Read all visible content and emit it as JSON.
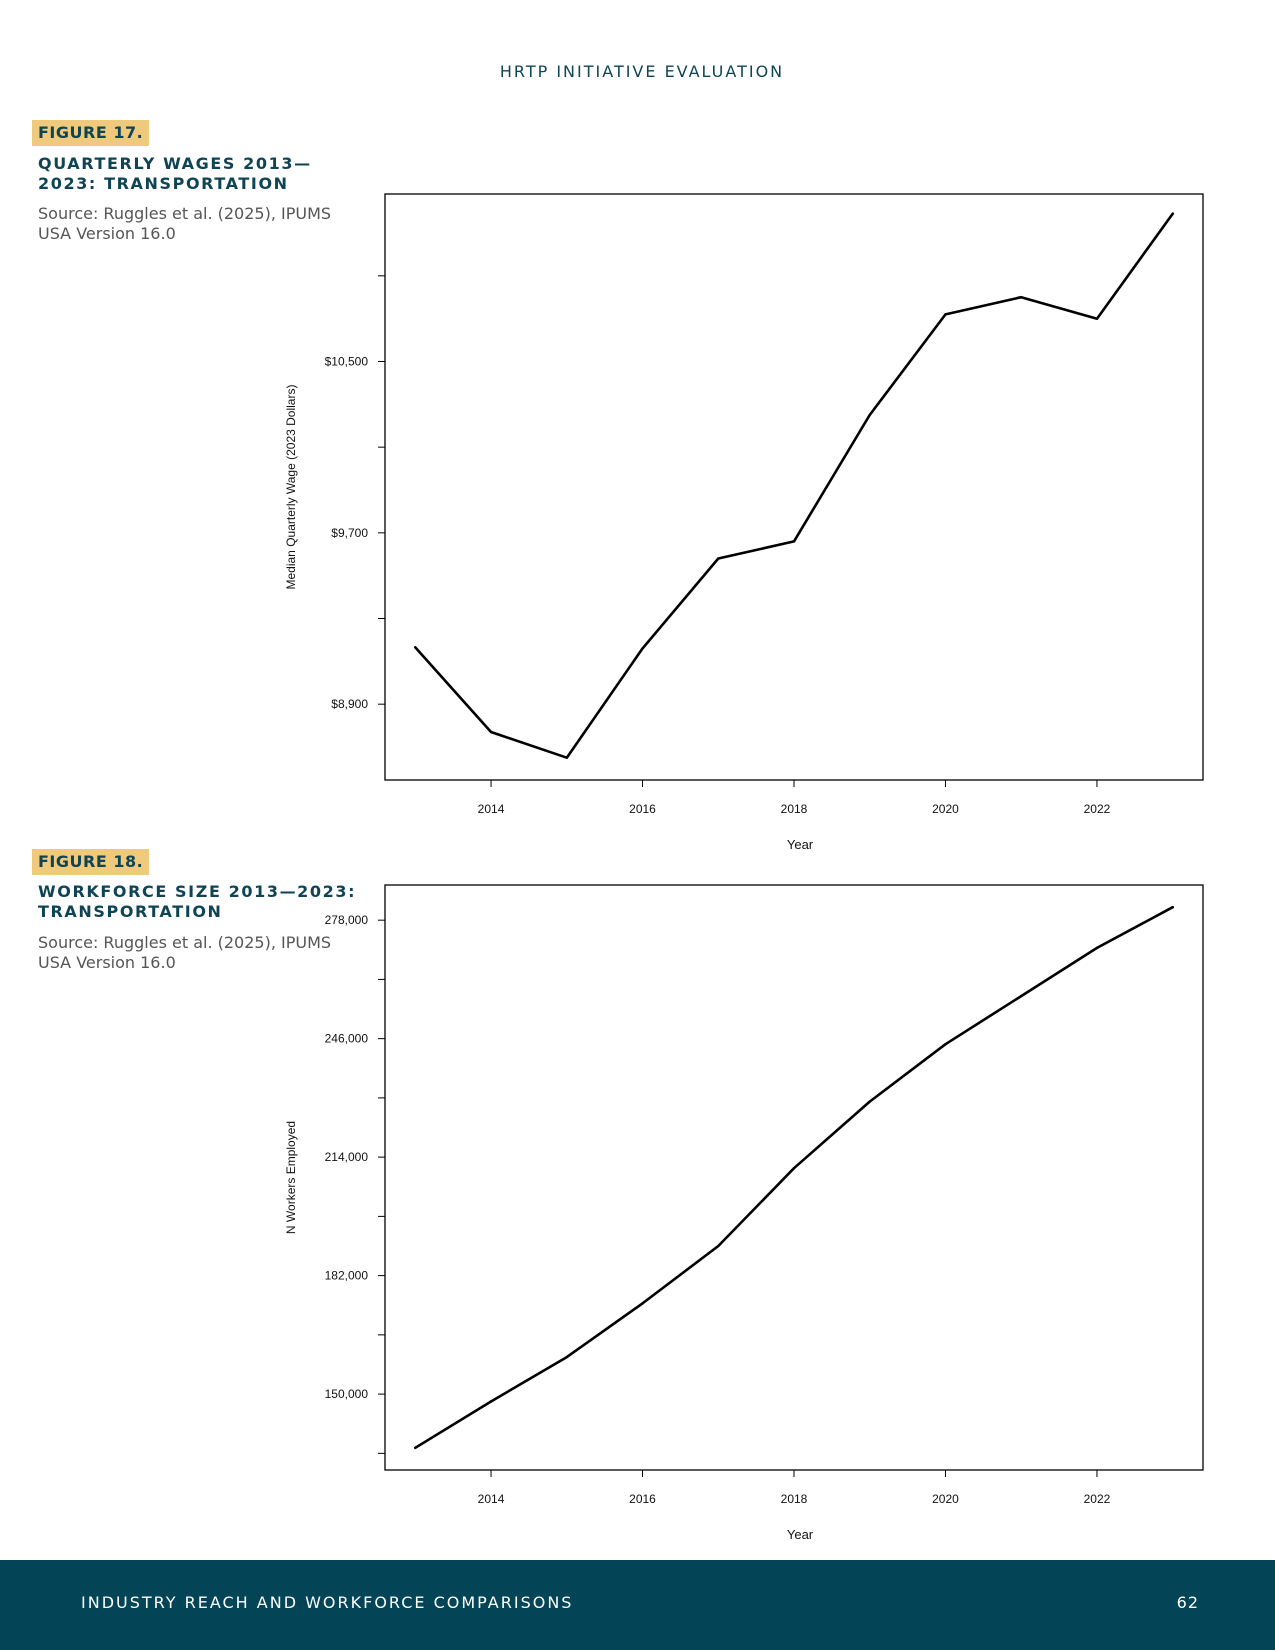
{
  "header": {
    "running_title": "HRTP INITIATIVE EVALUATION"
  },
  "figures": [
    {
      "label": "FIGURE 17.",
      "title": "QUARTERLY WAGES 2013—2023: TRANSPORTATION",
      "source": "Source: Ruggles et al. (2025), IPUMS USA Version 16.0"
    },
    {
      "label": "FIGURE 18.",
      "title": "WORKFORCE SIZE 2013—2023: TRANSPORTATION",
      "source": "Source: Ruggles et al. (2025), IPUMS USA Version 16.0"
    }
  ],
  "chart_data": [
    {
      "type": "line",
      "title": "",
      "xlabel": "Year",
      "ylabel": "Median Quarterly Wage (2023 Dollars)",
      "x": [
        2013,
        2014,
        2015,
        2016,
        2017,
        2018,
        2019,
        2020,
        2021,
        2022,
        2023
      ],
      "series": [
        {
          "values": [
            9165,
            8770,
            8650,
            9160,
            9580,
            9660,
            10250,
            10720,
            10800,
            10700,
            11190
          ]
        }
      ],
      "xlim": [
        2012.6,
        2023.4
      ],
      "ylim": [
        8546,
        11282
      ],
      "xticks": [
        2014,
        2016,
        2018,
        2020,
        2022
      ],
      "xtick_labels": [
        "2014",
        "2016",
        "2018",
        "2020",
        "2022"
      ],
      "yticks": [
        8900,
        9300,
        9700,
        10100,
        10500,
        10900
      ],
      "ytick_labels": [
        "$8,900",
        "",
        "$9,700",
        "",
        "$10,500",
        ""
      ],
      "color": "#000000",
      "grid": false,
      "legend": "none"
    },
    {
      "type": "line",
      "title": "",
      "xlabel": "Year",
      "ylabel": "N Workers Employed",
      "x": [
        2013,
        2014,
        2015,
        2016,
        2017,
        2018,
        2019,
        2020,
        2021,
        2022,
        2023
      ],
      "series": [
        {
          "values": [
            135500,
            148000,
            160000,
            174500,
            190000,
            211000,
            229000,
            244500,
            257500,
            270500,
            281500
          ]
        }
      ],
      "xlim": [
        2012.6,
        2023.4
      ],
      "ylim": [
        129500,
        287500
      ],
      "xticks": [
        2014,
        2016,
        2018,
        2020,
        2022
      ],
      "xtick_labels": [
        "2014",
        "2016",
        "2018",
        "2020",
        "2022"
      ],
      "yticks": [
        134000,
        150000,
        166000,
        182000,
        198000,
        214000,
        230000,
        246000,
        262000,
        278000
      ],
      "ytick_labels": [
        "",
        "150,000",
        "",
        "182,000",
        "",
        "214,000",
        "",
        "246,000",
        "",
        "278,000"
      ],
      "color": "#000000",
      "grid": false,
      "legend": "none"
    }
  ],
  "footer": {
    "section_title": "INDUSTRY REACH AND WORKFORCE COMPARISONS",
    "page_number": "62"
  }
}
